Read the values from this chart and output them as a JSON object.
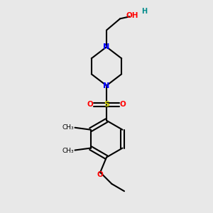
{
  "bg_color": "#e8e8e8",
  "bond_color": "#000000",
  "N_color": "#0000ff",
  "O_color": "#ff0000",
  "S_color": "#cccc00",
  "H_color": "#008b8b",
  "line_width": 1.5,
  "figsize": [
    3.0,
    3.0
  ],
  "dpi": 100,
  "xlim": [
    0,
    10
  ],
  "ylim": [
    0,
    10
  ]
}
